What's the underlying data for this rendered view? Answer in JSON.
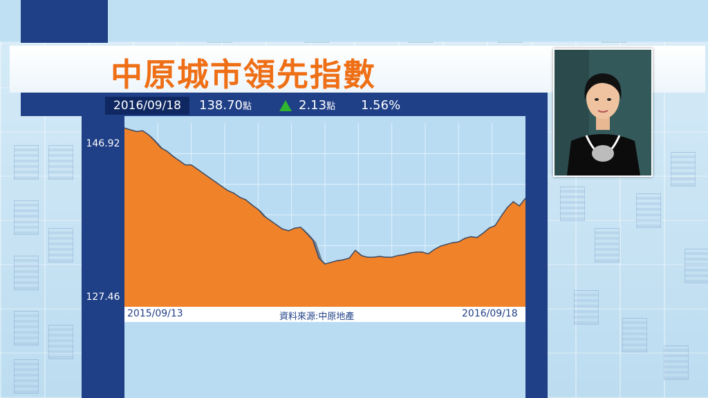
{
  "title": "中原城市領先指數",
  "info": {
    "date": "2016/09/18",
    "index_value": "138.70",
    "unit": "點",
    "change": "2.13",
    "change_unit": "點",
    "percent": "1.56%"
  },
  "colors": {
    "navy": "#1f3f86",
    "orange": "#ee6f16",
    "fill": "#f0822a",
    "up": "#2fb52f"
  },
  "icons": {
    "change": "up-triangle-icon"
  },
  "source_text": "資料來源:中原地產",
  "chart_data": {
    "type": "area",
    "title": "",
    "xlabel": "",
    "ylabel": "",
    "x_start": "2015/09/13",
    "x_end": "2016/09/18",
    "ytick_labels": [
      "146.92",
      "127.46"
    ],
    "ylim": [
      126.0,
      147.5
    ],
    "grid": true,
    "series": [
      {
        "values": [
          146.92,
          146.7,
          146.5,
          146.6,
          146.1,
          145.4,
          144.6,
          144.2,
          143.6,
          143.1,
          142.6,
          142.6,
          142.1,
          141.6,
          141.1,
          140.6,
          140.1,
          139.6,
          139.3,
          138.8,
          138.5,
          137.9,
          137.4,
          136.6,
          136.1,
          135.6,
          135.1,
          134.9,
          135.2,
          135.3,
          134.6,
          133.8,
          131.7,
          131.0,
          131.2,
          131.4,
          131.5,
          131.7,
          132.6,
          132.0,
          131.8,
          131.8,
          131.9,
          131.8,
          131.8,
          132.0,
          132.1,
          132.3,
          132.4,
          132.4,
          132.2,
          132.7,
          133.1,
          133.3,
          133.5,
          133.6,
          134.0,
          134.2,
          134.1,
          134.6,
          135.2,
          135.5,
          136.6,
          137.6,
          138.3,
          137.8,
          138.7
        ]
      }
    ]
  }
}
